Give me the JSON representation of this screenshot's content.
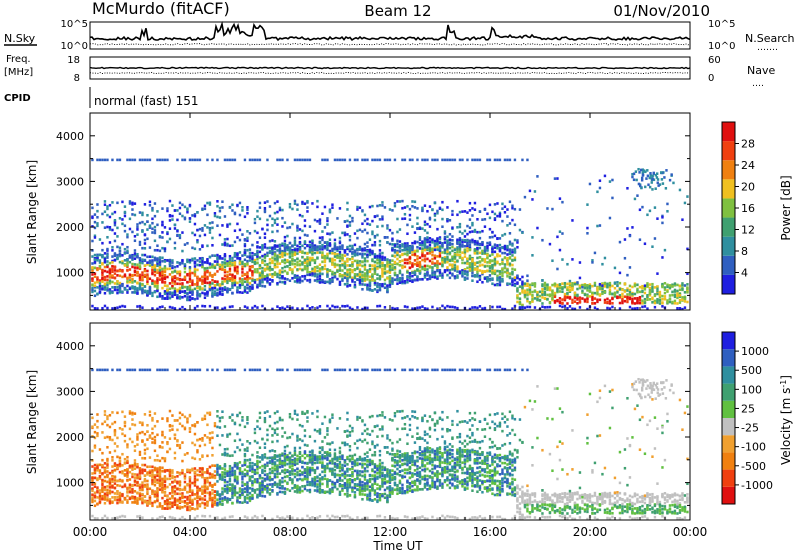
{
  "header": {
    "site": "McMurdo (fitACF)",
    "beam": "Beam 12",
    "date": "01/Nov/2010"
  },
  "strip_noise": {
    "left_label": "N.Sky",
    "right_label": "N.Search",
    "right_dots": "․․․․․․․",
    "left_ticks": [
      "10^5",
      "10^0"
    ],
    "right_ticks": [
      "10^5",
      "10^0"
    ]
  },
  "strip_freq": {
    "label_line1": "Freq.",
    "label_line2": "[MHz]",
    "right_label": "Nave",
    "right_dots": "․․․․",
    "left_ticks": [
      "18",
      "8"
    ],
    "right_ticks": [
      "60",
      "0"
    ]
  },
  "strip_cpid": {
    "label": "CPID",
    "mode": "normal (fast) 151"
  },
  "chart_data": [
    {
      "type": "heatmap",
      "panel": "power",
      "ylabel": "Slant Range [km]",
      "yticks": [
        "1000",
        "2000",
        "3000",
        "4000"
      ],
      "ylim": [
        180,
        4500
      ],
      "xlim": [
        0,
        24
      ],
      "colorbar": {
        "label": "Power [dB]",
        "ticks": [
          "4",
          "8",
          "12",
          "16",
          "20",
          "24",
          "28"
        ],
        "range": [
          0,
          32
        ],
        "colors": [
          "#1f1fe0",
          "#2f5fc0",
          "#2f8f9f",
          "#3fa070",
          "#7fc040",
          "#f0c020",
          "#f08010",
          "#f04010",
          "#e01010"
        ]
      },
      "notes": "Backscatter around 700-1500 km slant range between 00 and 17 UT (strongest ~900 km near 00:30-06:30 UT), scattered echoes up to 2500 km, ground scatter near 300-600 km after 17 UT."
    },
    {
      "type": "heatmap",
      "panel": "velocity",
      "ylabel": "Slant Range [km]",
      "yticks": [
        "1000",
        "2000",
        "3000",
        "4000"
      ],
      "ylim": [
        180,
        4500
      ],
      "xlim": [
        0,
        24
      ],
      "colorbar": {
        "label": "Velocity [m s^-1]",
        "ticks": [
          "1000",
          "500",
          "100",
          "25",
          "-25",
          "-100",
          "-500",
          "-1000"
        ],
        "range": [
          -1250,
          1250
        ],
        "colors": [
          "#e01010",
          "#f04010",
          "#f08010",
          "#f0a030",
          "#c0c0c0",
          "#60c040",
          "#3fa070",
          "#2f8f9f",
          "#2f5fc0",
          "#1f1fe0"
        ]
      },
      "notes": "Negative (orange) velocities dominate 00-05 UT near 700-1500 km; positive (green/blue) velocities 05-17 UT; grey ground scatter low-velocity band after 17 UT."
    }
  ],
  "time_axis": {
    "ticks": [
      "00:00",
      "04:00",
      "08:00",
      "12:00",
      "16:00",
      "20:00",
      "00:00"
    ],
    "label": "Time UT"
  }
}
